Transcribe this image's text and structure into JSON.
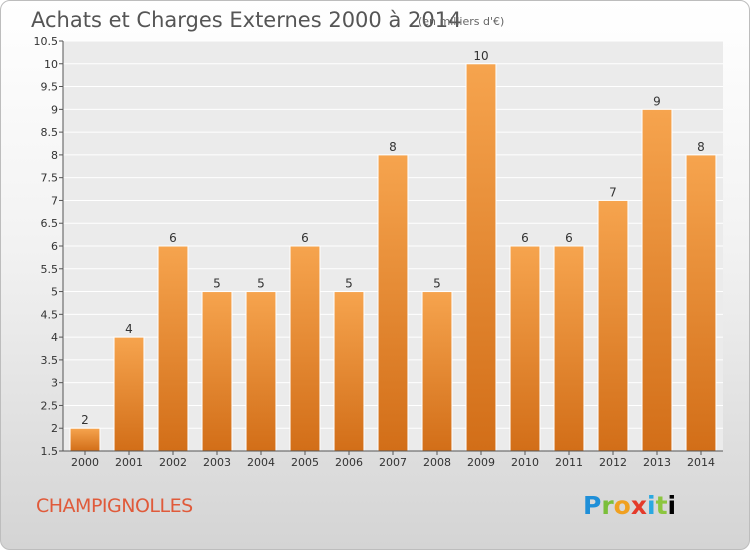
{
  "header": {
    "title": "Achats et Charges Externes 2000 à 2014",
    "unit": "(en milliers d'€)"
  },
  "footer": {
    "commune": "CHAMPIGNOLLES",
    "logo_letters": [
      "P",
      "r",
      "o",
      "x",
      "i",
      "t",
      "i"
    ]
  },
  "chart_data": {
    "type": "bar",
    "title": "Achats et Charges Externes 2000 à 2014",
    "subtitle": "(en milliers d'€)",
    "categories": [
      "2000",
      "2001",
      "2002",
      "2003",
      "2004",
      "2005",
      "2006",
      "2007",
      "2008",
      "2009",
      "2010",
      "2011",
      "2012",
      "2013",
      "2014"
    ],
    "values": [
      2,
      4,
      6,
      5,
      5,
      6,
      5,
      8,
      5,
      10,
      6,
      6,
      7,
      9,
      8
    ],
    "value_labels": [
      "2",
      "4",
      "6",
      "5",
      "5",
      "6",
      "5",
      "8",
      "5",
      "10",
      "6",
      "6",
      "7",
      "9",
      "8"
    ],
    "ylim": [
      1.5,
      10.5
    ],
    "yticks": [
      1.5,
      2,
      2.5,
      3,
      3.5,
      4,
      4.5,
      5,
      5.5,
      6,
      6.5,
      7,
      7.5,
      8,
      8.5,
      9,
      9.5,
      10,
      10.5
    ],
    "ytick_labels": [
      "1.5",
      "2",
      "2.5",
      "3",
      "3.5",
      "4",
      "4.5",
      "5",
      "5.5",
      "6",
      "6.5",
      "7",
      "7.5",
      "8",
      "8.5",
      "9",
      "9.5",
      "10",
      "10.5"
    ],
    "grid": true,
    "bar_color": "#f0922e",
    "bar_color_dark": "#d0701a"
  }
}
